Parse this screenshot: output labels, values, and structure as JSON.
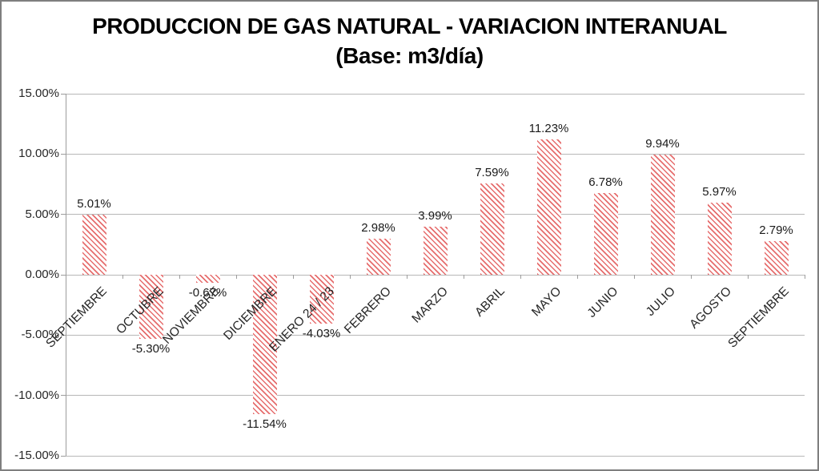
{
  "title": {
    "line1": "PRODUCCION DE GAS NATURAL - VARIACION INTERANUAL",
    "line2": "(Base: m3/día)"
  },
  "chart_data": {
    "type": "bar",
    "title": "PRODUCCION DE GAS NATURAL - VARIACION INTERANUAL",
    "subtitle": "(Base: m3/día)",
    "categories": [
      "SEPTIEMBRE",
      "OCTUBRE",
      "NOVIEMBRE",
      "DICIEMBRE",
      "ENERO 24 / 23",
      "FEBRERO",
      "MARZO",
      "ABRIL",
      "MAYO",
      "JUNIO",
      "JULIO",
      "AGOSTO",
      "SEPTIEMBRE"
    ],
    "values": [
      5.01,
      -5.3,
      -0.67,
      -11.54,
      -4.03,
      2.98,
      3.99,
      7.59,
      11.23,
      6.78,
      9.94,
      5.97,
      2.79
    ],
    "data_labels": [
      "5.01%",
      "-5.30%",
      "-0.67%",
      "-11.54%",
      "-4.03%",
      "2.98%",
      "3.99%",
      "7.59%",
      "11.23%",
      "6.78%",
      "9.94%",
      "5.97%",
      "2.79%"
    ],
    "xlabel": "",
    "ylabel": "",
    "ylim": [
      -15,
      15
    ],
    "ytick_step": 5,
    "ytick_labels": [
      "15.00%",
      "10.00%",
      "5.00%",
      "0.00%",
      "-5.00%",
      "-10.00%",
      "-15.00%"
    ],
    "grid": true,
    "legend_position": "none",
    "bar_pattern": "diagonal-stripes-down",
    "colors": {
      "bar_stripe": "#e66d6d",
      "bar_background": "#ffffff",
      "gridline": "#b7b7b7",
      "axis": "#9c9c9c",
      "label_text": "#1a1a1a",
      "tick_text": "#262626",
      "chart_border": "#7f7f7f"
    }
  }
}
